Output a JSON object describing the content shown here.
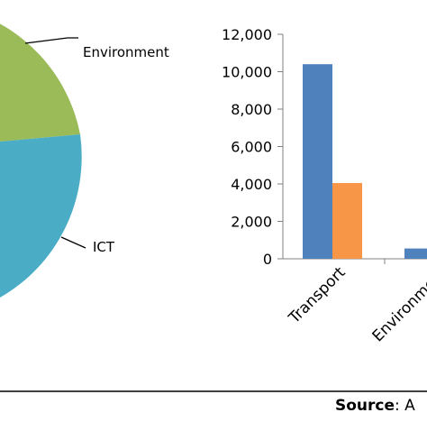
{
  "pie_chart": {
    "labels": [
      "Environment",
      "ICT"
    ]
  },
  "chart_data": [
    {
      "type": "pie",
      "slices": [
        {
          "label": "Environment",
          "color": "#9BBB59"
        },
        {
          "label": "ICT",
          "color": "#4BACC6"
        }
      ]
    },
    {
      "type": "bar",
      "categories": [
        "Transport",
        "Environment"
      ],
      "series": [
        {
          "values": [
            10400,
            550
          ],
          "color": "#4F81BD"
        },
        {
          "values": [
            4050,
            null
          ],
          "color": "#F79646"
        }
      ],
      "y_ticks": [
        "0",
        "2,000",
        "4,000",
        "6,000",
        "8,000",
        "10,000",
        "12,000"
      ],
      "ylim": [
        0,
        12000
      ]
    }
  ],
  "footer": {
    "source_label": "Source",
    "source_rest": ": A"
  }
}
